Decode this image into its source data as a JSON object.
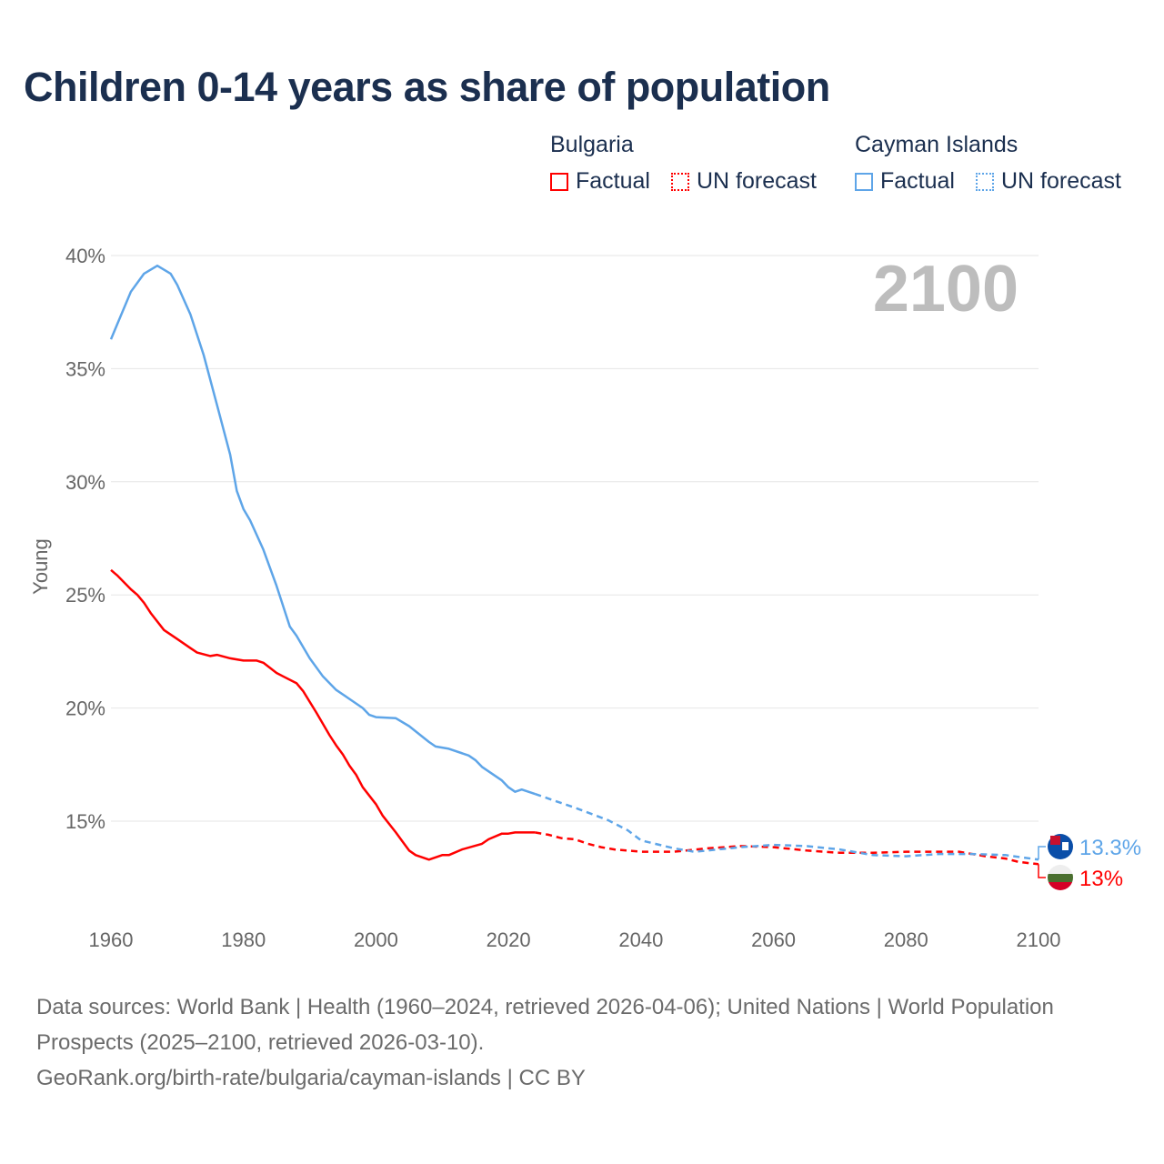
{
  "chart_data": {
    "type": "line",
    "title": "Children 0-14 years as share of population",
    "ylabel": "Young",
    "xlabel": "",
    "xlim": [
      1960,
      2100
    ],
    "ylim": [
      11,
      40
    ],
    "x_ticks": [
      1960,
      1980,
      2000,
      2020,
      2040,
      2060,
      2080,
      2100
    ],
    "x_tick_labels": [
      "1960",
      "1980",
      "2000",
      "2020",
      "2040",
      "2060",
      "2080",
      "2100"
    ],
    "y_ticks": [
      15,
      20,
      25,
      30,
      35,
      40
    ],
    "y_tick_labels": [
      "15%",
      "20%",
      "25%",
      "30%",
      "35%",
      "40%"
    ],
    "grid": true,
    "legend_placement": "top-right",
    "year_watermark": "2100",
    "forecast_start": 2024,
    "series": [
      {
        "name": "Bulgaria",
        "color": "#ff0000",
        "end_label": "13%",
        "points": [
          [
            1960,
            26.1
          ],
          [
            1961,
            25.85
          ],
          [
            1963,
            25.25
          ],
          [
            1964,
            25.0
          ],
          [
            1965,
            24.65
          ],
          [
            1966,
            24.2
          ],
          [
            1968,
            23.45
          ],
          [
            1970,
            23.05
          ],
          [
            1972,
            22.65
          ],
          [
            1973,
            22.45
          ],
          [
            1975,
            22.3
          ],
          [
            1976,
            22.35
          ],
          [
            1978,
            22.2
          ],
          [
            1980,
            22.1
          ],
          [
            1982,
            22.1
          ],
          [
            1983,
            22.0
          ],
          [
            1985,
            21.55
          ],
          [
            1986,
            21.4
          ],
          [
            1988,
            21.1
          ],
          [
            1989,
            20.75
          ],
          [
            1991,
            19.8
          ],
          [
            1993,
            18.8
          ],
          [
            1994,
            18.35
          ],
          [
            1995,
            17.95
          ],
          [
            1996,
            17.45
          ],
          [
            1997,
            17.05
          ],
          [
            1998,
            16.5
          ],
          [
            2000,
            15.75
          ],
          [
            2001,
            15.25
          ],
          [
            2003,
            14.5
          ],
          [
            2004,
            14.1
          ],
          [
            2005,
            13.7
          ],
          [
            2006,
            13.5
          ],
          [
            2008,
            13.3
          ],
          [
            2010,
            13.5
          ],
          [
            2011,
            13.5
          ],
          [
            2013,
            13.75
          ],
          [
            2016,
            14.0
          ],
          [
            2017,
            14.2
          ],
          [
            2019,
            14.45
          ],
          [
            2020,
            14.45
          ],
          [
            2021,
            14.5
          ],
          [
            2024,
            14.5
          ],
          [
            2026,
            14.4
          ],
          [
            2028,
            14.25
          ],
          [
            2030,
            14.2
          ],
          [
            2032,
            14.0
          ],
          [
            2034,
            13.85
          ],
          [
            2036,
            13.75
          ],
          [
            2040,
            13.65
          ],
          [
            2045,
            13.65
          ],
          [
            2050,
            13.8
          ],
          [
            2055,
            13.9
          ],
          [
            2060,
            13.85
          ],
          [
            2065,
            13.7
          ],
          [
            2070,
            13.6
          ],
          [
            2075,
            13.6
          ],
          [
            2080,
            13.65
          ],
          [
            2088,
            13.65
          ],
          [
            2092,
            13.45
          ],
          [
            2095,
            13.35
          ],
          [
            2097,
            13.2
          ],
          [
            2100,
            13.1
          ]
        ]
      },
      {
        "name": "Cayman Islands",
        "color": "#5ea5e8",
        "end_label": "13.3%",
        "points": [
          [
            1960,
            36.3
          ],
          [
            1963,
            38.4
          ],
          [
            1965,
            39.2
          ],
          [
            1967,
            39.55
          ],
          [
            1969,
            39.2
          ],
          [
            1970,
            38.7
          ],
          [
            1972,
            37.4
          ],
          [
            1974,
            35.6
          ],
          [
            1976,
            33.4
          ],
          [
            1978,
            31.2
          ],
          [
            1979,
            29.6
          ],
          [
            1980,
            28.8
          ],
          [
            1981,
            28.3
          ],
          [
            1983,
            27.0
          ],
          [
            1985,
            25.4
          ],
          [
            1987,
            23.6
          ],
          [
            1988,
            23.2
          ],
          [
            1990,
            22.2
          ],
          [
            1992,
            21.4
          ],
          [
            1994,
            20.8
          ],
          [
            1996,
            20.4
          ],
          [
            1998,
            20.0
          ],
          [
            1999,
            19.7
          ],
          [
            2000,
            19.6
          ],
          [
            2003,
            19.55
          ],
          [
            2005,
            19.2
          ],
          [
            2008,
            18.5
          ],
          [
            2009,
            18.3
          ],
          [
            2011,
            18.2
          ],
          [
            2014,
            17.9
          ],
          [
            2015,
            17.7
          ],
          [
            2016,
            17.4
          ],
          [
            2019,
            16.8
          ],
          [
            2020,
            16.5
          ],
          [
            2021,
            16.3
          ],
          [
            2022,
            16.4
          ],
          [
            2024,
            16.2
          ],
          [
            2025,
            16.1
          ],
          [
            2030,
            15.6
          ],
          [
            2035,
            15.05
          ],
          [
            2038,
            14.6
          ],
          [
            2040,
            14.15
          ],
          [
            2045,
            13.8
          ],
          [
            2048,
            13.65
          ],
          [
            2050,
            13.7
          ],
          [
            2055,
            13.85
          ],
          [
            2060,
            13.95
          ],
          [
            2065,
            13.9
          ],
          [
            2070,
            13.75
          ],
          [
            2075,
            13.5
          ],
          [
            2080,
            13.45
          ],
          [
            2085,
            13.55
          ],
          [
            2090,
            13.55
          ],
          [
            2095,
            13.5
          ],
          [
            2100,
            13.3
          ]
        ]
      }
    ]
  },
  "legend": {
    "groups": [
      {
        "country": "Bulgaria",
        "factual": "Factual",
        "forecast": "UN forecast",
        "color": "#ff0000"
      },
      {
        "country": "Cayman Islands",
        "factual": "Factual",
        "forecast": "UN forecast",
        "color": "#5ea5e8"
      }
    ]
  },
  "footer": {
    "line1": "Data sources: World Bank | Health (1960–2024, retrieved 2026-04-06); United Nations | World Population Prospects (2025–2100, retrieved 2026-03-10).",
    "line2": "GeoRank.org/birth-rate/bulgaria/cayman-islands | CC BY"
  }
}
